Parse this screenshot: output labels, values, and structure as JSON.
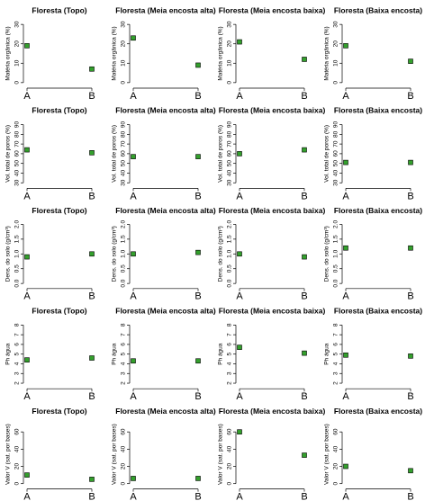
{
  "chart_data": [
    {
      "type": "scatter",
      "title": "Floresta (Topo)",
      "y_label": "Matéria orgânica (%)",
      "categories": [
        "A",
        "B"
      ],
      "values": [
        19,
        7
      ],
      "color": "#33a02c",
      "ylim": [
        -1,
        31
      ],
      "yticks": [
        0,
        10,
        20,
        30
      ]
    },
    {
      "type": "scatter",
      "title": "Floresta (Meia encosta alta)",
      "y_label": "Matéria orgânica (%)",
      "categories": [
        "A",
        "B"
      ],
      "values": [
        23,
        9
      ],
      "color": "#33a02c",
      "ylim": [
        -1,
        31
      ],
      "yticks": [
        0,
        10,
        20,
        30
      ]
    },
    {
      "type": "scatter",
      "title": "Floresta (Meia encosta baixa)",
      "y_label": "Matéria orgânica (%)",
      "categories": [
        "A",
        "B"
      ],
      "values": [
        21,
        12
      ],
      "color": "#33a02c",
      "ylim": [
        -1,
        31
      ],
      "yticks": [
        0,
        10,
        20,
        30
      ]
    },
    {
      "type": "scatter",
      "title": "Floresta (Baixa encosta)",
      "y_label": "Matéria orgânica (%)",
      "categories": [
        "A",
        "B"
      ],
      "values": [
        19,
        11
      ],
      "color": "#33a02c",
      "ylim": [
        -1,
        31
      ],
      "yticks": [
        0,
        10,
        20,
        30
      ]
    },
    {
      "type": "scatter",
      "title": "Floresta (Topo)",
      "y_label": "Vol. total de poros (%)",
      "categories": [
        "A",
        "B"
      ],
      "values": [
        64,
        61
      ],
      "color": "#33a02c",
      "ylim": [
        28,
        92
      ],
      "yticks": [
        30,
        40,
        50,
        60,
        70,
        80,
        90
      ]
    },
    {
      "type": "scatter",
      "title": "Floresta (Meia encosta alta)",
      "y_label": "Vol. total de poros (%)",
      "categories": [
        "A",
        "B"
      ],
      "values": [
        57,
        57
      ],
      "color": "#33a02c",
      "ylim": [
        28,
        92
      ],
      "yticks": [
        30,
        40,
        50,
        60,
        70,
        80,
        90
      ]
    },
    {
      "type": "scatter",
      "title": "Floresta (Meia encosta baixa)",
      "y_label": "Vol. total de poros (%)",
      "categories": [
        "A",
        "B"
      ],
      "values": [
        60,
        64
      ],
      "color": "#33a02c",
      "ylim": [
        28,
        92
      ],
      "yticks": [
        30,
        40,
        50,
        60,
        70,
        80,
        90
      ]
    },
    {
      "type": "scatter",
      "title": "Floresta (Baixa encosta)",
      "y_label": "Vol. total de poros (%)",
      "categories": [
        "A",
        "B"
      ],
      "values": [
        51,
        51
      ],
      "color": "#33a02c",
      "ylim": [
        28,
        92
      ],
      "yticks": [
        30,
        40,
        50,
        60,
        70,
        80,
        90
      ]
    },
    {
      "type": "scatter",
      "title": "Floresta (Topo)",
      "y_label": "Dens. do solo (g/cm³)",
      "categories": [
        "A",
        "B"
      ],
      "values": [
        0.9,
        1.0
      ],
      "color": "#33a02c",
      "ylim": [
        -0.05,
        2.05
      ],
      "yticks": [
        {
          "value": 0,
          "label": "0.0"
        },
        {
          "value": 0.5,
          "label": "0.5"
        },
        {
          "value": 1,
          "label": "1.0"
        },
        {
          "value": 1.5,
          "label": "1.5"
        },
        {
          "value": 2,
          "label": "2.0"
        }
      ]
    },
    {
      "type": "scatter",
      "title": "Floresta (Meia encosta alta)",
      "y_label": "Dens. do solo (g/cm³)",
      "categories": [
        "A",
        "B"
      ],
      "values": [
        1.0,
        1.05
      ],
      "color": "#33a02c",
      "ylim": [
        -0.05,
        2.05
      ],
      "yticks": [
        {
          "value": 0,
          "label": "0.0"
        },
        {
          "value": 0.5,
          "label": "0.5"
        },
        {
          "value": 1,
          "label": "1.0"
        },
        {
          "value": 1.5,
          "label": "1.5"
        },
        {
          "value": 2,
          "label": "2.0"
        }
      ]
    },
    {
      "type": "scatter",
      "title": "Floresta (Meia encosta baixa)",
      "y_label": "Dens. do solo (g/cm³)",
      "categories": [
        "A",
        "B"
      ],
      "values": [
        1.0,
        0.9
      ],
      "color": "#33a02c",
      "ylim": [
        -0.05,
        2.05
      ],
      "yticks": [
        {
          "value": 0,
          "label": "0.0"
        },
        {
          "value": 0.5,
          "label": "0.5"
        },
        {
          "value": 1,
          "label": "1.0"
        },
        {
          "value": 1.5,
          "label": "1.5"
        },
        {
          "value": 2,
          "label": "2.0"
        }
      ]
    },
    {
      "type": "scatter",
      "title": "Floresta (Baixa encosta)",
      "y_label": "Dens. do solo (g/cm³)",
      "categories": [
        "A",
        "B"
      ],
      "values": [
        1.2,
        1.2
      ],
      "color": "#33a02c",
      "ylim": [
        -0.05,
        2.05
      ],
      "yticks": [
        {
          "value": 0,
          "label": "0.0"
        },
        {
          "value": 0.5,
          "label": "0.5"
        },
        {
          "value": 1,
          "label": "1.0"
        },
        {
          "value": 1.5,
          "label": "1.5"
        },
        {
          "value": 2,
          "label": "2.0"
        }
      ]
    },
    {
      "type": "scatter",
      "title": "Floresta (Topo)",
      "y_label": "Ph água",
      "categories": [
        "A",
        "B"
      ],
      "values": [
        4.4,
        4.6
      ],
      "color": "#33a02c",
      "ylim": [
        1.8,
        8.2
      ],
      "yticks": [
        2,
        3,
        4,
        5,
        6,
        7,
        8
      ]
    },
    {
      "type": "scatter",
      "title": "Floresta (Meia encosta alta)",
      "y_label": "Ph água",
      "categories": [
        "A",
        "B"
      ],
      "values": [
        4.3,
        4.3
      ],
      "color": "#33a02c",
      "ylim": [
        1.8,
        8.2
      ],
      "yticks": [
        2,
        3,
        4,
        5,
        6,
        7,
        8
      ]
    },
    {
      "type": "scatter",
      "title": "Floresta (Meia encosta baixa)",
      "y_label": "Ph água",
      "categories": [
        "A",
        "B"
      ],
      "values": [
        5.7,
        5.1
      ],
      "color": "#33a02c",
      "ylim": [
        1.8,
        8.2
      ],
      "yticks": [
        2,
        3,
        4,
        5,
        6,
        7,
        8
      ]
    },
    {
      "type": "scatter",
      "title": "Floresta (Baixa encosta)",
      "y_label": "Ph água",
      "categories": [
        "A",
        "B"
      ],
      "values": [
        4.9,
        4.8
      ],
      "color": "#33a02c",
      "ylim": [
        1.8,
        8.2
      ],
      "yticks": [
        2,
        3,
        4,
        5,
        6,
        7,
        8
      ]
    },
    {
      "type": "scatter",
      "title": "Floresta (Topo)",
      "y_label": "Valor V (sat. por bases)",
      "categories": [
        "A",
        "B"
      ],
      "values": [
        10,
        5
      ],
      "color": "#33a02c",
      "ylim": [
        -2,
        70
      ],
      "yticks": [
        0,
        20,
        40,
        60
      ]
    },
    {
      "type": "scatter",
      "title": "Floresta (Meia encosta alta)",
      "y_label": "Valor V (sat. por bases)",
      "categories": [
        "A",
        "B"
      ],
      "values": [
        6,
        6
      ],
      "color": "#33a02c",
      "ylim": [
        -2,
        70
      ],
      "yticks": [
        0,
        20,
        40,
        60
      ]
    },
    {
      "type": "scatter",
      "title": "Floresta (Meia encosta baixa)",
      "y_label": "Valor V (sat. por bases)",
      "categories": [
        "A",
        "B"
      ],
      "values": [
        60,
        33
      ],
      "color": "#33a02c",
      "ylim": [
        -2,
        70
      ],
      "yticks": [
        0,
        20,
        40,
        60
      ]
    },
    {
      "type": "scatter",
      "title": "Floresta (Baixa encosta)",
      "y_label": "Valor V (sat. por bases)",
      "categories": [
        "A",
        "B"
      ],
      "values": [
        20,
        15
      ],
      "color": "#33a02c",
      "ylim": [
        -2,
        70
      ],
      "yticks": [
        0,
        20,
        40,
        60
      ]
    }
  ]
}
